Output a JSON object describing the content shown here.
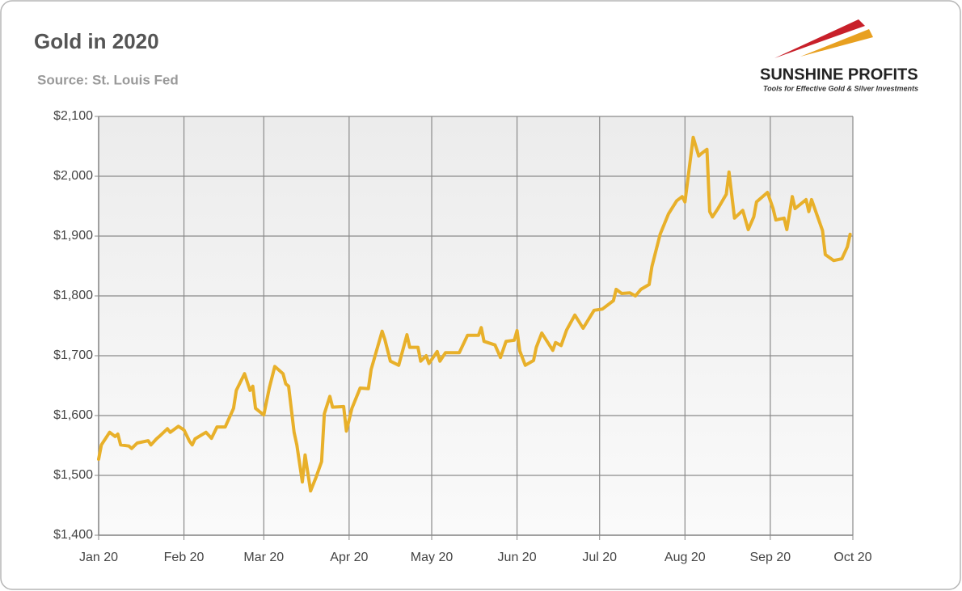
{
  "chart_data": {
    "type": "line",
    "title": "Gold in 2020",
    "subtitle": "Source: St. Louis Fed",
    "color": "#e8b02a",
    "grid": true,
    "x": [
      0,
      1,
      4,
      6,
      7,
      8,
      11,
      12,
      14,
      18,
      19,
      21,
      22,
      25,
      26,
      29,
      31,
      33,
      34,
      35,
      39,
      41,
      43,
      46,
      49,
      50,
      53,
      55,
      56,
      57,
      60,
      62,
      64,
      67,
      68,
      69,
      71,
      72,
      74,
      75,
      77,
      79,
      81,
      82,
      84,
      85,
      89,
      90,
      92,
      95,
      98,
      99,
      103,
      104,
      106,
      109,
      112,
      113,
      116,
      117,
      119,
      120,
      123,
      124,
      126,
      131,
      134,
      138,
      139,
      140,
      144,
      146,
      148,
      151,
      152,
      153,
      155,
      158,
      159,
      161,
      165,
      166,
      168,
      170,
      173,
      176,
      180,
      183,
      187,
      188,
      190,
      193,
      195,
      197,
      200,
      201,
      204,
      207,
      210,
      212,
      213,
      216,
      218,
      219,
      221,
      222,
      223,
      225,
      228,
      229,
      231,
      234,
      236,
      238,
      239,
      243,
      245,
      246,
      249,
      250,
      252,
      253,
      257,
      258,
      259,
      263,
      264,
      267,
      270,
      272,
      273
    ],
    "values": [
      1527,
      1551,
      1572,
      1565,
      1569,
      1551,
      1549,
      1545,
      1554,
      1558,
      1551,
      1561,
      1565,
      1578,
      1572,
      1582,
      1576,
      1557,
      1551,
      1561,
      1572,
      1562,
      1581,
      1581,
      1612,
      1642,
      1670,
      1642,
      1649,
      1612,
      1601,
      1646,
      1682,
      1670,
      1653,
      1649,
      1572,
      1551,
      1489,
      1534,
      1474,
      1497,
      1523,
      1603,
      1632,
      1614,
      1615,
      1574,
      1612,
      1646,
      1645,
      1677,
      1741,
      1727,
      1691,
      1684,
      1735,
      1714,
      1714,
      1691,
      1700,
      1687,
      1707,
      1691,
      1705,
      1705,
      1734,
      1734,
      1747,
      1724,
      1718,
      1697,
      1724,
      1726,
      1742,
      1708,
      1684,
      1692,
      1714,
      1738,
      1709,
      1722,
      1717,
      1743,
      1768,
      1746,
      1776,
      1778,
      1792,
      1811,
      1804,
      1805,
      1800,
      1811,
      1819,
      1849,
      1903,
      1937,
      1959,
      1966,
      1957,
      2065,
      2034,
      2038,
      2045,
      1941,
      1932,
      1946,
      1970,
      2007,
      1930,
      1943,
      1911,
      1932,
      1957,
      1973,
      1946,
      1927,
      1930,
      1911,
      1966,
      1946,
      1961,
      1941,
      1961,
      1909,
      1869,
      1859,
      1862,
      1882,
      1903
    ],
    "xlim": [
      0,
      274
    ],
    "xticks": [
      {
        "value": 0,
        "label": "Jan 20"
      },
      {
        "value": 31,
        "label": "Feb 20"
      },
      {
        "value": 60,
        "label": "Mar 20"
      },
      {
        "value": 91,
        "label": "Apr 20"
      },
      {
        "value": 121,
        "label": "May 20"
      },
      {
        "value": 152,
        "label": "Jun 20"
      },
      {
        "value": 182,
        "label": "Jul 20"
      },
      {
        "value": 213,
        "label": "Aug 20"
      },
      {
        "value": 244,
        "label": "Sep 20"
      },
      {
        "value": 274,
        "label": "Oct 20"
      }
    ],
    "ylim": [
      1400,
      2100
    ],
    "yticks": [
      {
        "value": 1400,
        "label": "$1,400"
      },
      {
        "value": 1500,
        "label": "$1,500"
      },
      {
        "value": 1600,
        "label": "$1,600"
      },
      {
        "value": 1700,
        "label": "$1,700"
      },
      {
        "value": 1800,
        "label": "$1,800"
      },
      {
        "value": 1900,
        "label": "$1,900"
      },
      {
        "value": 2000,
        "label": "$2,000"
      },
      {
        "value": 2100,
        "label": "$2,100"
      }
    ]
  },
  "logo": {
    "name": "SUNSHINE PROFITS",
    "tagline": "Tools for Effective Gold & Silver Investments"
  }
}
